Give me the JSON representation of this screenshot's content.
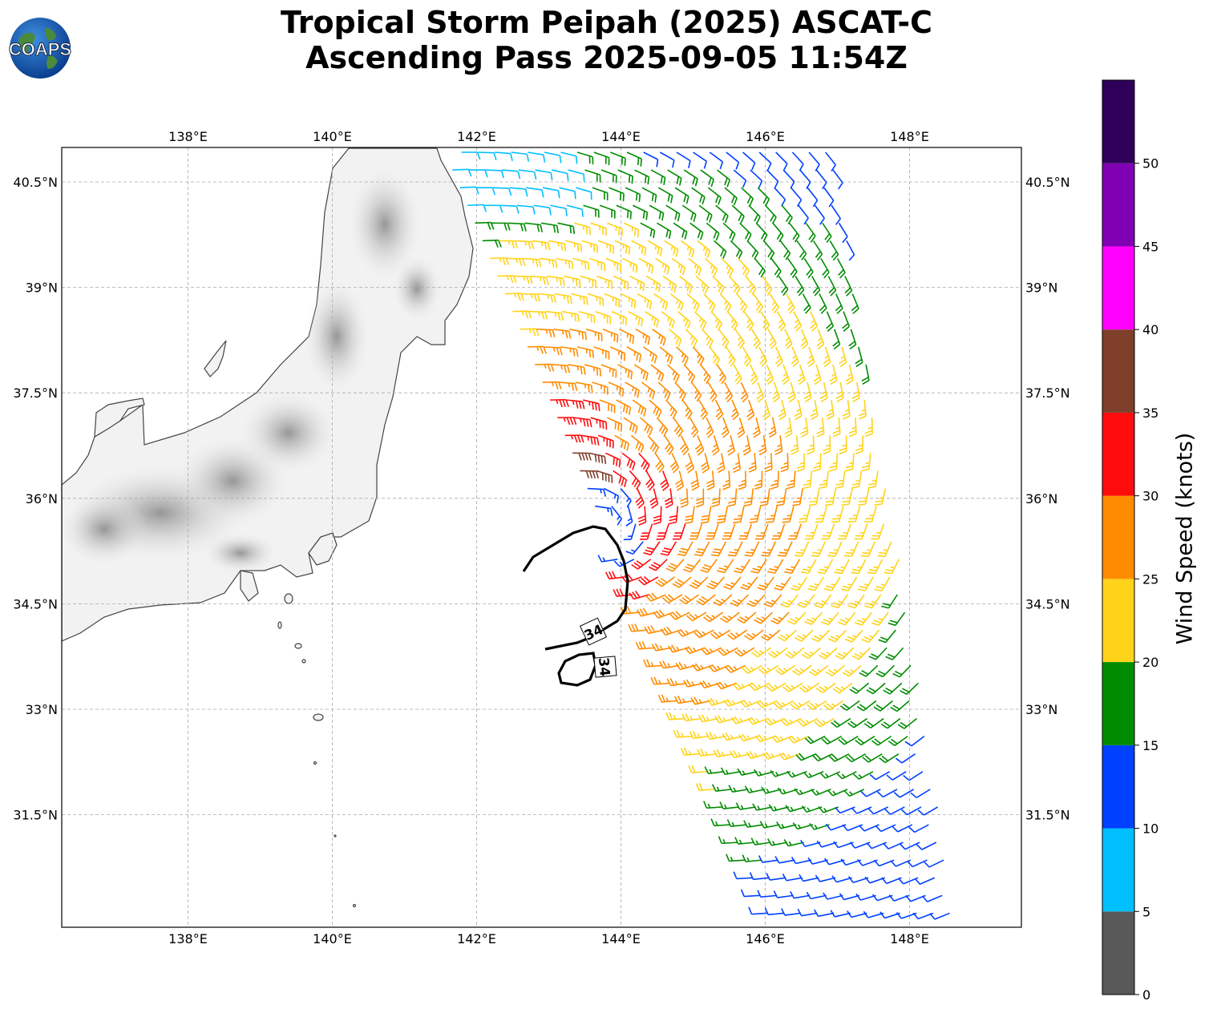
{
  "title": {
    "line1": "Tropical Storm Peipah (2025) ASCAT-C",
    "line2": "Ascending Pass 2025-09-05 11:54Z"
  },
  "logo": {
    "text": "COAPS",
    "icon": "globe-logo-icon"
  },
  "map": {
    "lon_ticks": [
      "138°E",
      "140°E",
      "142°E",
      "144°E",
      "146°E",
      "148°E"
    ],
    "lat_ticks": [
      "40.5°N",
      "39°N",
      "37.5°N",
      "36°N",
      "34.5°N",
      "33°N",
      "31.5°N"
    ],
    "lon_values": [
      138,
      140,
      142,
      144,
      146,
      148
    ],
    "lat_values": [
      40.5,
      39,
      37.5,
      36,
      34.5,
      33,
      31.5
    ],
    "lon_range": [
      136.25,
      149.55
    ],
    "lat_range": [
      29.9,
      40.99
    ],
    "storm_center": {
      "lon": 143.7,
      "lat": 35.6
    },
    "contour_label": "34",
    "contour_value_knots": 34,
    "swath": "ASCAT-C ascending"
  },
  "colorbar": {
    "label": "Wind Speed (knots)",
    "ticks": [
      "0",
      "5",
      "10",
      "15",
      "20",
      "25",
      "30",
      "35",
      "40",
      "45",
      "50"
    ],
    "bins": [
      {
        "min": 0,
        "max": 5,
        "color": "#595959"
      },
      {
        "min": 5,
        "max": 10,
        "color": "#00bfff"
      },
      {
        "min": 10,
        "max": 15,
        "color": "#0040ff"
      },
      {
        "min": 15,
        "max": 20,
        "color": "#008c00"
      },
      {
        "min": 20,
        "max": 25,
        "color": "#ffd31a"
      },
      {
        "min": 25,
        "max": 30,
        "color": "#ff8c00"
      },
      {
        "min": 30,
        "max": 35,
        "color": "#ff0d0d"
      },
      {
        "min": 35,
        "max": 40,
        "color": "#7f3f2a"
      },
      {
        "min": 40,
        "max": 45,
        "color": "#ff00ff"
      },
      {
        "min": 45,
        "max": 50,
        "color": "#8000b3"
      },
      {
        "min": 50,
        "max": 55,
        "color": "#2e0059"
      }
    ]
  }
}
